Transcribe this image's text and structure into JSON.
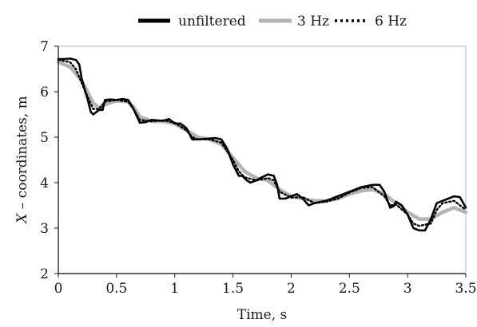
{
  "chart_data": {
    "type": "line",
    "title": "",
    "xlabel": "Time, s",
    "ylabel_prefix": "X",
    "ylabel_rest": " – coordinates, m",
    "xlim": [
      0,
      3.5
    ],
    "ylim": [
      2,
      7
    ],
    "xticks": [
      0,
      0.5,
      1,
      1.5,
      2,
      2.5,
      3,
      3.5
    ],
    "xtick_labels": [
      "0",
      "0.5",
      "1",
      "1.5",
      "2",
      "2.5",
      "3",
      "3.5"
    ],
    "yticks": [
      2,
      3,
      4,
      5,
      6,
      7
    ],
    "ytick_labels": [
      "2",
      "3",
      "4",
      "5",
      "6",
      "7"
    ],
    "grid": false,
    "legend_position": "top",
    "series": [
      {
        "name": "unfiltered",
        "color": "#000000",
        "style": "solid",
        "x": [
          0,
          0.05,
          0.1,
          0.15,
          0.18,
          0.2,
          0.22,
          0.25,
          0.28,
          0.3,
          0.35,
          0.38,
          0.4,
          0.45,
          0.5,
          0.55,
          0.6,
          0.65,
          0.7,
          0.75,
          0.8,
          0.9,
          0.95,
          1.0,
          1.05,
          1.1,
          1.15,
          1.2,
          1.3,
          1.35,
          1.4,
          1.45,
          1.5,
          1.52,
          1.55,
          1.58,
          1.62,
          1.65,
          1.7,
          1.75,
          1.8,
          1.85,
          1.88,
          1.9,
          1.95,
          2.0,
          2.05,
          2.1,
          2.15,
          2.2,
          2.3,
          2.4,
          2.5,
          2.6,
          2.7,
          2.76,
          2.8,
          2.85,
          2.88,
          2.9,
          2.95,
          3.0,
          3.05,
          3.1,
          3.15,
          3.2,
          3.25,
          3.3,
          3.35,
          3.4,
          3.45,
          3.5
        ],
        "y": [
          6.72,
          6.72,
          6.73,
          6.7,
          6.6,
          6.3,
          6.1,
          5.85,
          5.55,
          5.5,
          5.6,
          5.6,
          5.82,
          5.83,
          5.82,
          5.84,
          5.82,
          5.6,
          5.32,
          5.33,
          5.38,
          5.36,
          5.4,
          5.3,
          5.3,
          5.2,
          4.95,
          4.95,
          4.97,
          4.98,
          4.95,
          4.75,
          4.4,
          4.3,
          4.15,
          4.15,
          4.05,
          4.0,
          4.05,
          4.12,
          4.18,
          4.15,
          3.95,
          3.65,
          3.65,
          3.7,
          3.75,
          3.65,
          3.5,
          3.55,
          3.6,
          3.7,
          3.8,
          3.9,
          3.95,
          3.95,
          3.8,
          3.45,
          3.48,
          3.58,
          3.5,
          3.3,
          3.0,
          2.95,
          2.95,
          3.2,
          3.55,
          3.6,
          3.65,
          3.7,
          3.68,
          3.45
        ]
      },
      {
        "name": "3 Hz",
        "color": "#b3b3b3",
        "style": "solid",
        "x": [
          0,
          0.1,
          0.2,
          0.25,
          0.3,
          0.35,
          0.4,
          0.5,
          0.6,
          0.65,
          0.7,
          0.8,
          0.9,
          1.0,
          1.1,
          1.2,
          1.3,
          1.4,
          1.5,
          1.6,
          1.7,
          1.8,
          1.9,
          2.0,
          2.1,
          2.2,
          2.3,
          2.4,
          2.5,
          2.6,
          2.7,
          2.8,
          2.9,
          3.0,
          3.1,
          3.2,
          3.3,
          3.4,
          3.5
        ],
        "y": [
          6.65,
          6.55,
          6.25,
          6.0,
          5.75,
          5.65,
          5.72,
          5.8,
          5.78,
          5.65,
          5.45,
          5.35,
          5.35,
          5.3,
          5.15,
          5.0,
          4.95,
          4.85,
          4.55,
          4.25,
          4.1,
          4.05,
          3.85,
          3.7,
          3.65,
          3.6,
          3.6,
          3.65,
          3.75,
          3.82,
          3.85,
          3.75,
          3.55,
          3.35,
          3.2,
          3.2,
          3.35,
          3.45,
          3.35
        ]
      },
      {
        "name": "6 Hz",
        "color": "#000000",
        "style": "dotted",
        "x": [
          0,
          0.1,
          0.15,
          0.2,
          0.25,
          0.3,
          0.35,
          0.4,
          0.5,
          0.6,
          0.65,
          0.7,
          0.8,
          0.9,
          1.0,
          1.1,
          1.15,
          1.2,
          1.3,
          1.4,
          1.5,
          1.55,
          1.6,
          1.7,
          1.8,
          1.85,
          1.9,
          2.0,
          2.1,
          2.2,
          2.3,
          2.4,
          2.5,
          2.6,
          2.7,
          2.8,
          2.85,
          2.9,
          3.0,
          3.05,
          3.1,
          3.2,
          3.25,
          3.3,
          3.4,
          3.5
        ],
        "y": [
          6.7,
          6.65,
          6.5,
          6.2,
          5.9,
          5.62,
          5.62,
          5.78,
          5.82,
          5.78,
          5.6,
          5.38,
          5.35,
          5.37,
          5.32,
          5.15,
          5.0,
          4.95,
          4.95,
          4.88,
          4.5,
          4.25,
          4.12,
          4.05,
          4.1,
          4.05,
          3.8,
          3.67,
          3.68,
          3.55,
          3.58,
          3.65,
          3.78,
          3.88,
          3.9,
          3.7,
          3.5,
          3.52,
          3.3,
          3.1,
          3.05,
          3.1,
          3.4,
          3.55,
          3.6,
          3.4
        ]
      }
    ]
  }
}
